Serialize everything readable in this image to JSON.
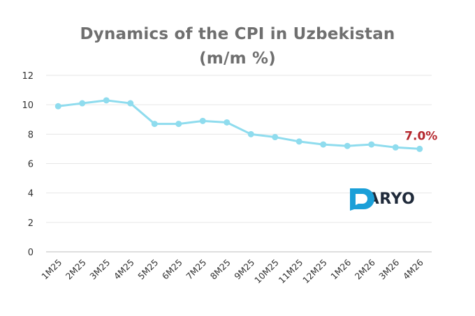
{
  "chart_data": {
    "type": "line",
    "title": "Dynamics of the CPI in Uzbekistan",
    "subtitle": "(m/m %)",
    "categories": [
      "1M25",
      "2M25",
      "3M25",
      "4M25",
      "5M25",
      "6M25",
      "7M25",
      "8M25",
      "9M25",
      "10M25",
      "11M25",
      "12M25",
      "1M26",
      "2M26",
      "3M26",
      "4M26"
    ],
    "series": [
      {
        "values": [
          9.9,
          10.1,
          10.3,
          10.1,
          8.7,
          8.7,
          8.9,
          8.8,
          8.0,
          7.8,
          7.5,
          7.3,
          7.2,
          7.3,
          7.1,
          7.0
        ]
      }
    ],
    "ylim": [
      0,
      12
    ],
    "yticks": [
      0,
      2,
      4,
      6,
      8,
      10,
      12
    ],
    "grid": true,
    "line_color": "#8fdcee",
    "annotation": {
      "text": "7.0%",
      "color": "#b5272d"
    }
  },
  "logo": {
    "text": "DARYO",
    "color": "#1a9fd8"
  }
}
